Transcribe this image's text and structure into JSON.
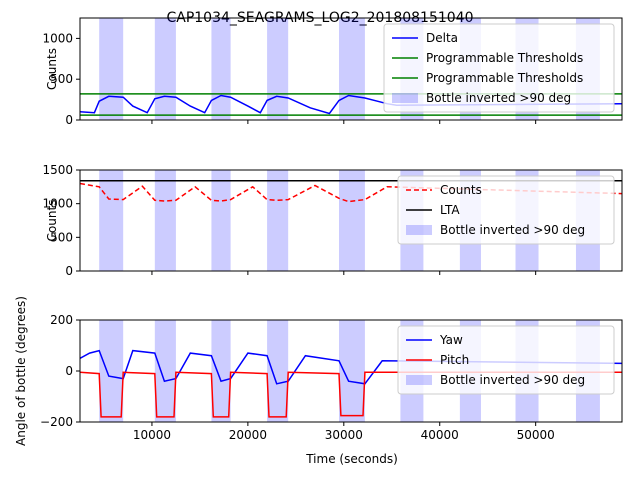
{
  "title": "CAP1034_SEAGRAMS_LOG2_201808151040",
  "x_shared": {
    "label": "Time (seconds)",
    "range": [
      2500,
      59000
    ],
    "ticks": [
      10000,
      20000,
      30000,
      40000,
      50000
    ],
    "tick_labels": [
      "10000",
      "20000",
      "30000",
      "40000",
      "50000"
    ]
  },
  "bottle_inverted_intervals": [
    [
      4500,
      7000
    ],
    [
      10300,
      12500
    ],
    [
      16200,
      18200
    ],
    [
      22000,
      24200
    ],
    [
      29500,
      32200
    ],
    [
      35900,
      38300
    ],
    [
      42100,
      44300
    ],
    [
      47900,
      50300
    ],
    [
      54200,
      56700
    ]
  ],
  "colors": {
    "blue": "#0000ff",
    "green": "#008000",
    "red": "#ff0000",
    "black": "#000000",
    "span": "#0000ff"
  },
  "chart_data": [
    {
      "type": "line",
      "ylabel": "Counts",
      "ylim": [
        0,
        1250
      ],
      "yticks": [
        0,
        500,
        1000
      ],
      "ytick_labels": [
        "0",
        "500",
        "1000"
      ],
      "legend_position": "top-right",
      "legend": [
        "Delta",
        "Programmable Thresholds",
        "Programmable Thresholds",
        "Bottle inverted >90 deg"
      ],
      "series": [
        {
          "name": "Delta",
          "x": [
            2500,
            4000,
            4500,
            5500,
            7000,
            8000,
            9500,
            10300,
            11300,
            12500,
            14000,
            15500,
            16200,
            17200,
            18200,
            20000,
            21300,
            22000,
            23000,
            24200,
            26500,
            28500,
            29500,
            30500,
            32200,
            33500,
            34500,
            35500,
            59000
          ],
          "y": [
            100,
            90,
            230,
            290,
            280,
            170,
            90,
            260,
            290,
            280,
            170,
            90,
            240,
            300,
            280,
            170,
            90,
            240,
            290,
            270,
            150,
            80,
            240,
            300,
            270,
            230,
            200,
            180,
            200
          ]
        },
        {
          "name": "Programmable Thresholds",
          "x": [
            2500,
            59000
          ],
          "y": [
            320,
            320
          ]
        },
        {
          "name": "Programmable Thresholds",
          "x": [
            2500,
            59000
          ],
          "y": [
            60,
            60
          ]
        }
      ]
    },
    {
      "type": "line",
      "ylabel": "Counts",
      "ylim": [
        0,
        1500
      ],
      "yticks": [
        0,
        500,
        1000,
        1500
      ],
      "ytick_labels": [
        "0",
        "500",
        "1000",
        "1500"
      ],
      "legend_position": "top-right",
      "legend": [
        "Counts",
        "LTA",
        "Bottle inverted >90 deg"
      ],
      "series": [
        {
          "name": "Counts",
          "x": [
            2500,
            4500,
            5500,
            7000,
            9000,
            10300,
            11300,
            12500,
            14500,
            16200,
            17200,
            18200,
            20500,
            22000,
            23000,
            24200,
            27000,
            29500,
            30500,
            32200,
            34500,
            59000
          ],
          "y": [
            1300,
            1250,
            1070,
            1060,
            1260,
            1050,
            1040,
            1050,
            1250,
            1050,
            1040,
            1060,
            1250,
            1060,
            1050,
            1060,
            1270,
            1080,
            1030,
            1060,
            1250,
            1150
          ]
        },
        {
          "name": "LTA",
          "x": [
            2500,
            59000
          ],
          "y": [
            1340,
            1340
          ]
        }
      ]
    },
    {
      "type": "line",
      "ylabel": "Angle of bottle (degrees)",
      "ylim": [
        -200,
        200
      ],
      "yticks": [
        -200,
        0,
        200
      ],
      "ytick_labels": [
        "−200",
        "0",
        "200"
      ],
      "legend_position": "top-right",
      "legend": [
        "Yaw",
        "Pitch",
        "Bottle inverted >90 deg"
      ],
      "series": [
        {
          "name": "Yaw",
          "x": [
            2500,
            3500,
            4500,
            5500,
            7000,
            8000,
            10300,
            11300,
            12500,
            14000,
            16200,
            17200,
            18200,
            20000,
            22000,
            23000,
            24200,
            26000,
            29500,
            30500,
            32200,
            34000,
            59000
          ],
          "y": [
            50,
            70,
            80,
            -20,
            -30,
            80,
            70,
            -40,
            -30,
            70,
            60,
            -40,
            -30,
            70,
            60,
            -50,
            -40,
            60,
            40,
            -40,
            -50,
            40,
            30
          ]
        },
        {
          "name": "Pitch",
          "x": [
            2500,
            4500,
            4700,
            6800,
            7000,
            10300,
            10500,
            12300,
            12500,
            16200,
            16400,
            18000,
            18200,
            22000,
            22200,
            24000,
            24200,
            29500,
            29700,
            32000,
            32200,
            59000
          ],
          "y": [
            -5,
            -10,
            -180,
            -180,
            -5,
            -10,
            -180,
            -180,
            -5,
            -10,
            -180,
            -180,
            -5,
            -10,
            -180,
            -180,
            -5,
            -10,
            -175,
            -175,
            -5,
            -5
          ]
        }
      ]
    }
  ]
}
